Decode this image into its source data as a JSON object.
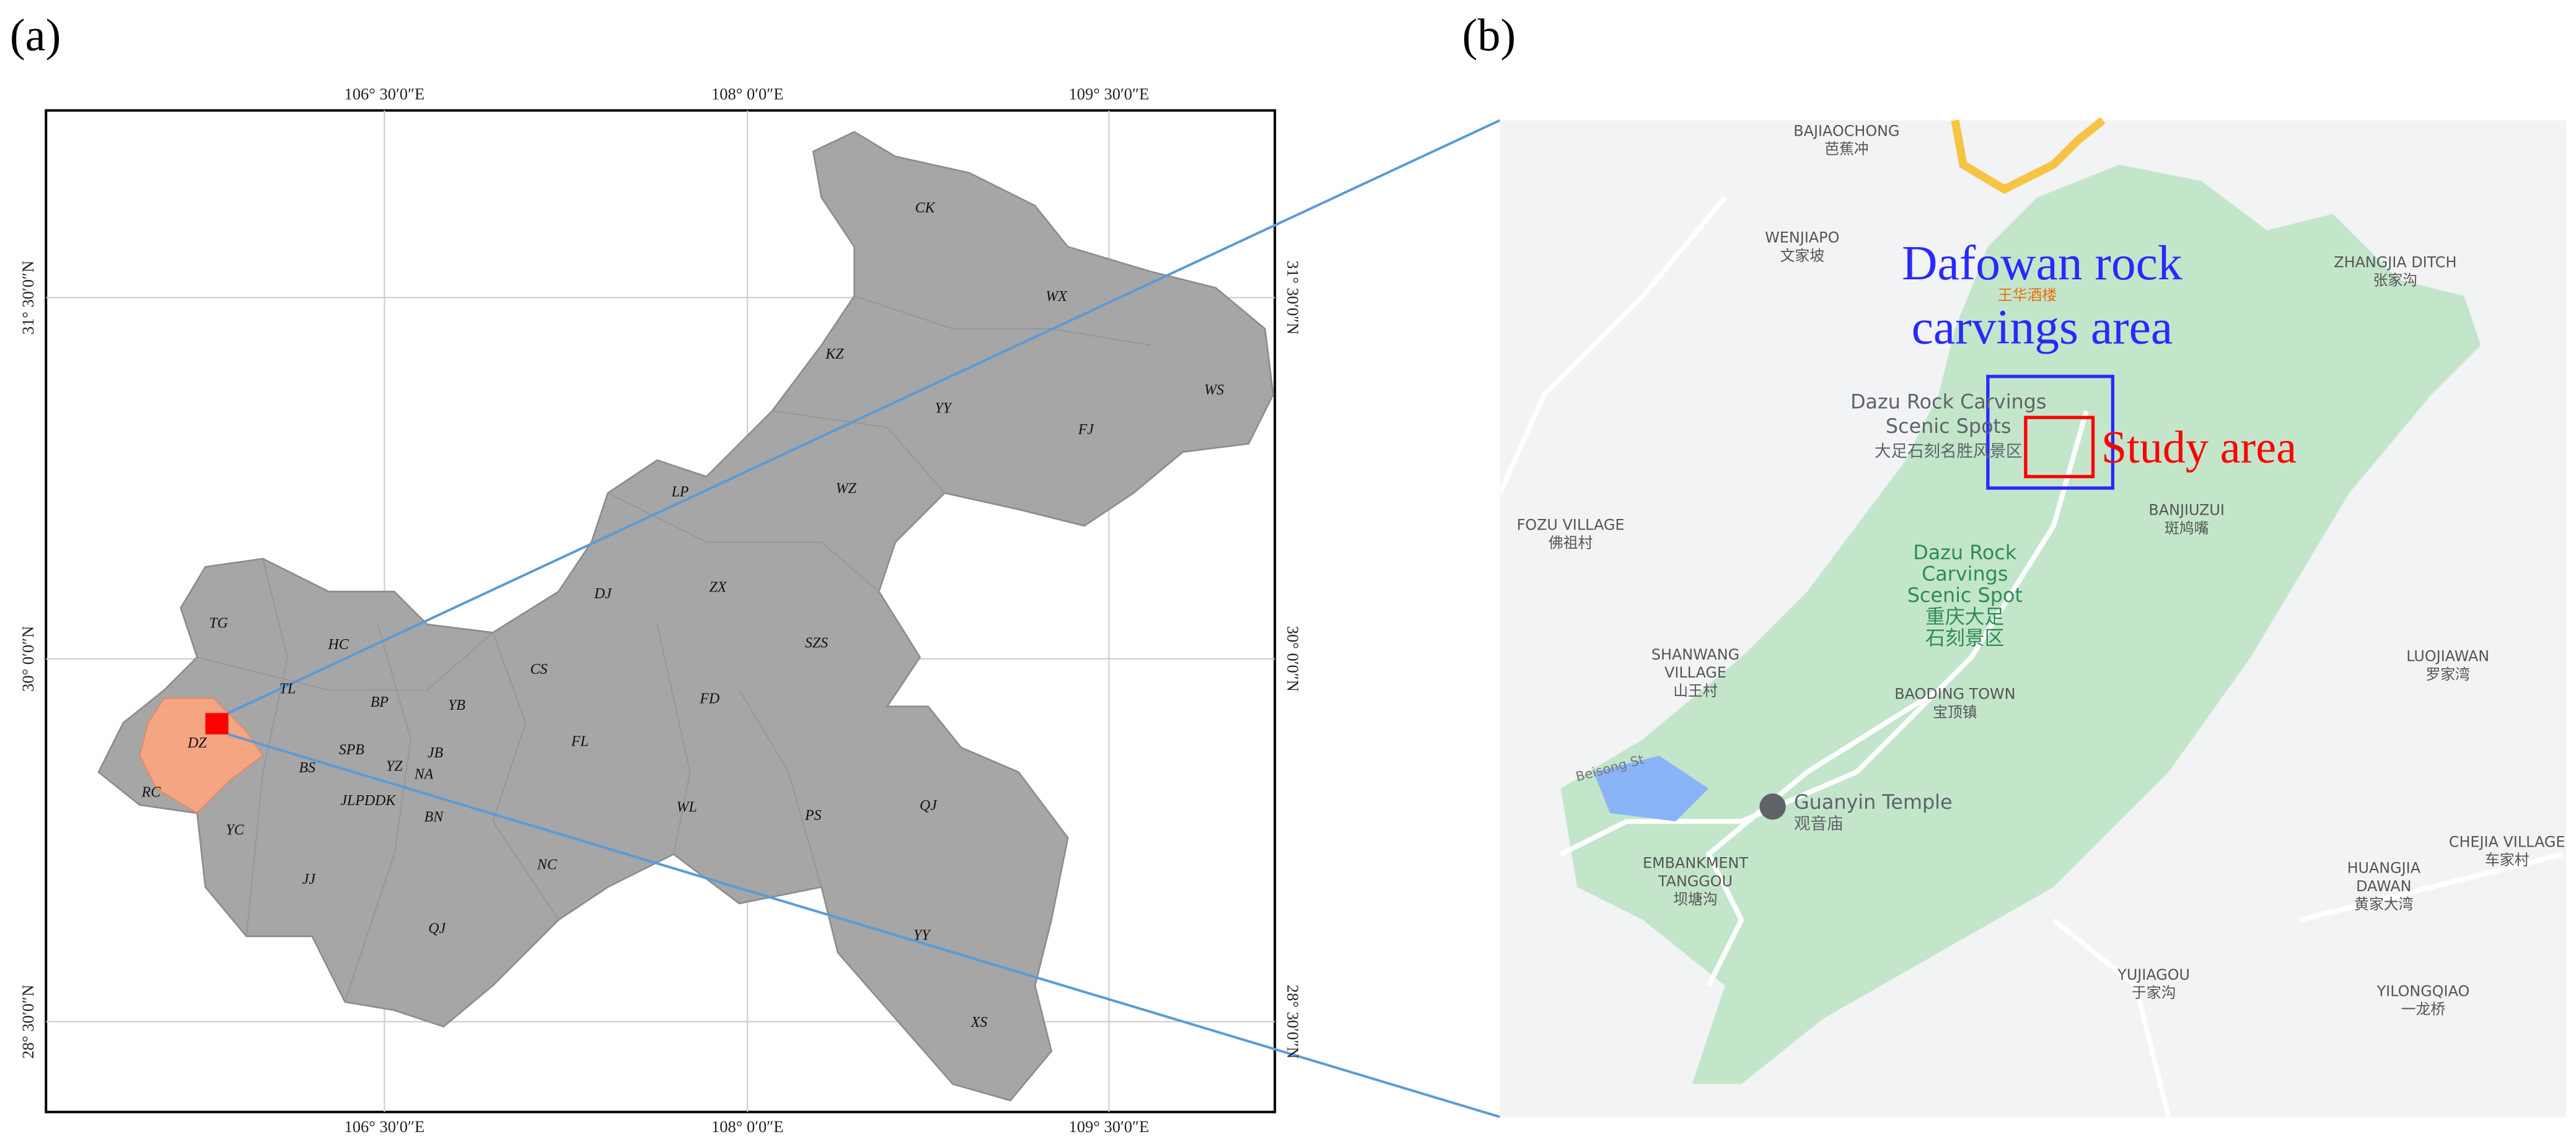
{
  "panel_a": {
    "label": "(a)",
    "lon_ticks": [
      "106° 30′0″E",
      "108° 0′0″E",
      "109° 30′0″E"
    ],
    "lat_ticks": [
      "31° 30′0″N",
      "30° 0′0″N",
      "28° 30′0″N"
    ],
    "districts": [
      "CK",
      "WX",
      "WS",
      "KZ",
      "YY",
      "FJ",
      "WZ",
      "LP",
      "DJ",
      "ZX",
      "TG",
      "HC",
      "SZS",
      "CS",
      "TL",
      "BP",
      "YB",
      "FD",
      "DZ",
      "SPB",
      "JB",
      "YZ",
      "NA",
      "BS",
      "FL",
      "RC",
      "JLPDDK",
      "WL",
      "PS",
      "QJ",
      "BN",
      "YC",
      "NC",
      "JJ",
      "QJ",
      "YY",
      "XS"
    ]
  },
  "panel_b": {
    "label": "(b)",
    "places": [
      [
        "BAJIAOCHONG",
        "芭蕉冲"
      ],
      [
        "WENJIAPO",
        "文家坡"
      ],
      [
        "ZHANGJIA DITCH",
        "张家沟"
      ],
      [
        "FOZU VILLAGE",
        "佛祖村"
      ],
      [
        "BANJIUZUI",
        "斑鸠嘴"
      ],
      [
        "SHANWANG",
        "VILLAGE",
        "山王村"
      ],
      [
        "LUOJIAWAN",
        "罗家湾"
      ],
      [
        "BAODING TOWN",
        "宝顶镇"
      ],
      [
        "EMBANKMENT",
        "TANGGOU",
        "坝塘沟"
      ],
      [
        "CHEJIA VILLAGE",
        "车家村"
      ],
      [
        "HUANGJIA",
        "DAWAN",
        "黄家大湾"
      ],
      [
        "YUJIAGOU",
        "于家沟"
      ],
      [
        "YILONGQIAO",
        "一龙桥"
      ]
    ],
    "pois": [
      [
        "Dazu Rock Carvings",
        "Scenic Spots",
        "大足石刻名胜风景区"
      ],
      [
        "Guanyin Temple",
        "观音庙"
      ],
      [
        "王华酒楼"
      ],
      [
        "Beisong St"
      ]
    ],
    "green_labels": [
      "Dazu Rock",
      "Carvings",
      "Scenic Spot",
      "重庆大足",
      "石刻景区"
    ],
    "dafowan_label": [
      "Dafowan rock",
      "carvings area"
    ],
    "study_label": "Study area"
  }
}
